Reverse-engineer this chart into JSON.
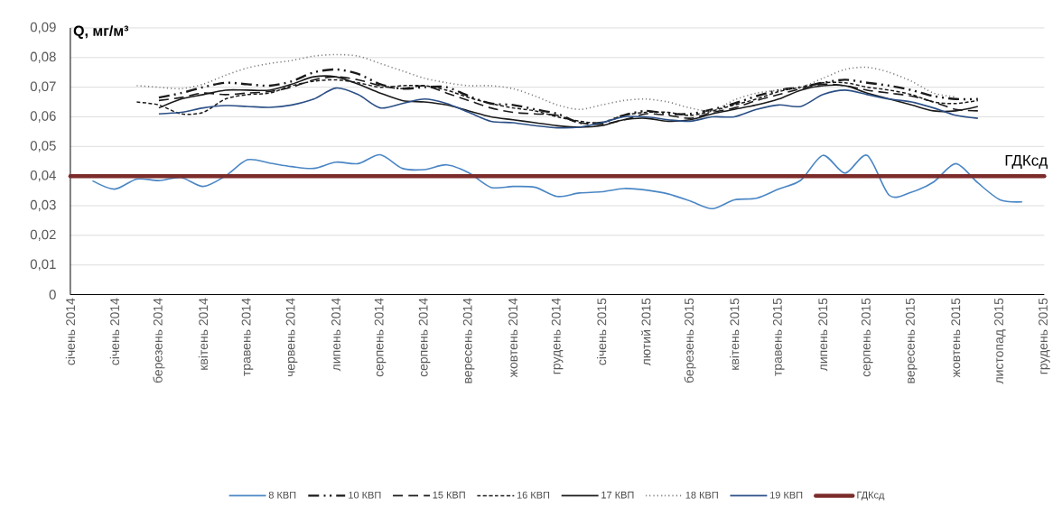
{
  "chart_data": {
    "type": "line",
    "ylabel": "Q, мг/м³",
    "categories": [
      "січень 2014",
      null,
      "січень 2014",
      null,
      "березень 2014",
      null,
      "квітень 2014",
      null,
      "травень 2014",
      null,
      "червень 2014",
      null,
      "липень 2014",
      null,
      "серпень 2014",
      null,
      "серпень 2014",
      null,
      "вересень 2014",
      null,
      "жовтень 2014",
      null,
      "грудень 2014",
      null,
      "січень 2015",
      null,
      "лютий 2015",
      null,
      "березень 2015",
      null,
      "квітень 2015",
      null,
      "травень 2015",
      null,
      "липень 2015",
      null,
      "серпень 2015",
      null,
      "вересень 2015",
      null,
      "жовтень 2015",
      null,
      "листопад 2015",
      null,
      "грудень 2015"
    ],
    "series": [
      {
        "name": "8 КВП",
        "color": "#4a86c5",
        "line_style": "solid",
        "values": [
          null,
          0.0384,
          0.0356,
          0.039,
          0.0385,
          0.0395,
          0.0365,
          0.04,
          0.0455,
          0.0444,
          0.0432,
          0.0426,
          0.0447,
          0.0442,
          0.0472,
          0.0426,
          0.0422,
          0.0438,
          0.0411,
          0.0362,
          0.0365,
          0.0362,
          0.0331,
          0.0343,
          0.0347,
          0.0358,
          0.0353,
          0.034,
          0.0316,
          0.029,
          0.032,
          0.0325,
          0.0356,
          0.0386,
          0.047,
          0.041,
          0.047,
          0.0335,
          0.0346,
          0.038,
          0.0442,
          0.0377,
          0.032,
          0.0313,
          null
        ]
      },
      {
        "name": "10 КВП",
        "color": "#1a1a1a",
        "line_style": "dashdotdotted",
        "values": [
          null,
          null,
          null,
          null,
          0.0665,
          0.068,
          0.07,
          0.0715,
          0.071,
          0.0705,
          0.072,
          0.075,
          0.076,
          0.0745,
          0.071,
          0.0695,
          0.07,
          0.07,
          0.067,
          0.0645,
          0.064,
          0.0625,
          0.061,
          0.058,
          0.058,
          0.0605,
          0.062,
          0.061,
          0.061,
          0.0625,
          0.0645,
          0.067,
          0.069,
          0.07,
          0.0715,
          0.0725,
          0.0715,
          0.0705,
          0.069,
          0.067,
          0.066,
          0.066,
          null,
          null,
          null
        ]
      },
      {
        "name": "15 КВП",
        "color": "#1a1a1a",
        "line_style": "dashed",
        "values": [
          null,
          null,
          null,
          null,
          0.0655,
          0.0665,
          0.068,
          0.0675,
          0.068,
          0.0685,
          0.07,
          0.0725,
          0.0735,
          0.0725,
          0.0705,
          0.0695,
          0.0705,
          0.068,
          0.0655,
          0.063,
          0.0615,
          0.061,
          0.0605,
          0.058,
          0.0575,
          0.059,
          0.061,
          0.0605,
          0.0595,
          0.0615,
          0.063,
          0.0655,
          0.0675,
          0.0695,
          0.071,
          0.0705,
          0.069,
          0.068,
          0.067,
          0.065,
          0.0625,
          0.062,
          null,
          null,
          null
        ]
      },
      {
        "name": "16 КВП",
        "color": "#1a1a1a",
        "line_style": "densely dashed",
        "values": [
          null,
          null,
          null,
          0.065,
          0.064,
          0.061,
          0.0615,
          0.066,
          0.0675,
          0.068,
          0.0705,
          0.072,
          0.0725,
          0.0715,
          0.07,
          0.0705,
          0.0705,
          0.069,
          0.0665,
          0.0645,
          0.063,
          0.062,
          0.06,
          0.0585,
          0.058,
          0.0605,
          0.0615,
          0.0615,
          0.0605,
          0.062,
          0.064,
          0.066,
          0.0685,
          0.07,
          0.0715,
          0.0715,
          0.07,
          0.069,
          0.0675,
          0.065,
          0.0645,
          0.0655,
          null,
          null,
          null
        ]
      },
      {
        "name": "17 КВП",
        "color": "#1a1a1a",
        "line_style": "solid",
        "values": [
          null,
          null,
          null,
          null,
          0.063,
          0.066,
          0.0675,
          0.069,
          0.069,
          0.069,
          0.071,
          0.0735,
          0.0735,
          0.071,
          0.068,
          0.0655,
          0.065,
          0.064,
          0.062,
          0.06,
          0.059,
          0.058,
          0.057,
          0.0565,
          0.057,
          0.059,
          0.0595,
          0.0585,
          0.059,
          0.061,
          0.0625,
          0.064,
          0.066,
          0.069,
          0.0705,
          0.0705,
          0.068,
          0.066,
          0.064,
          0.062,
          0.062,
          0.0635,
          null,
          null,
          null
        ]
      },
      {
        "name": "18 КВП",
        "color": "#7f7f7f",
        "line_style": "dotted",
        "values": [
          null,
          null,
          null,
          0.0705,
          0.07,
          0.0695,
          0.071,
          0.074,
          0.0765,
          0.078,
          0.079,
          0.0805,
          0.081,
          0.0805,
          0.078,
          0.0755,
          0.073,
          0.0715,
          0.0705,
          0.0705,
          0.0695,
          0.067,
          0.064,
          0.0625,
          0.064,
          0.0655,
          0.066,
          0.065,
          0.063,
          0.062,
          0.0657,
          0.068,
          0.069,
          0.07,
          0.073,
          0.076,
          0.0767,
          0.075,
          0.072,
          0.068,
          0.0667,
          null,
          null,
          null,
          null
        ]
      },
      {
        "name": "19 КВП",
        "color": "#2b4f86",
        "line_style": "solid",
        "values": [
          null,
          null,
          null,
          null,
          0.061,
          0.0615,
          0.063,
          0.0638,
          0.0635,
          0.0632,
          0.064,
          0.066,
          0.0697,
          0.0675,
          0.063,
          0.0645,
          0.066,
          0.0645,
          0.0615,
          0.0585,
          0.058,
          0.057,
          0.0563,
          0.0565,
          0.058,
          0.06,
          0.06,
          0.059,
          0.0585,
          0.06,
          0.06,
          0.0625,
          0.064,
          0.0635,
          0.0675,
          0.069,
          0.0675,
          0.066,
          0.065,
          0.063,
          0.0605,
          0.0595,
          null,
          null,
          null
        ]
      }
    ],
    "ref_lines": [
      {
        "axis": "y",
        "value": 0.04,
        "label": "ГДКсд",
        "color": "#7b2c2a"
      }
    ],
    "ylim": [
      0,
      0.09
    ],
    "yticks": [
      0,
      {
        "value": 0.01,
        "label": "0,01"
      },
      {
        "value": 0.02,
        "label": "0,02"
      },
      {
        "value": 0.03,
        "label": "0,03"
      },
      {
        "value": 0.04,
        "label": "0,04"
      },
      {
        "value": 0.05,
        "label": "0,05"
      },
      {
        "value": 0.06,
        "label": "0,06"
      },
      {
        "value": 0.07,
        "label": "0,07"
      },
      {
        "value": 0.08,
        "label": "0,08"
      },
      {
        "value": 0.09,
        "label": "0,09"
      }
    ],
    "grid": "y",
    "legend": "bottom"
  }
}
